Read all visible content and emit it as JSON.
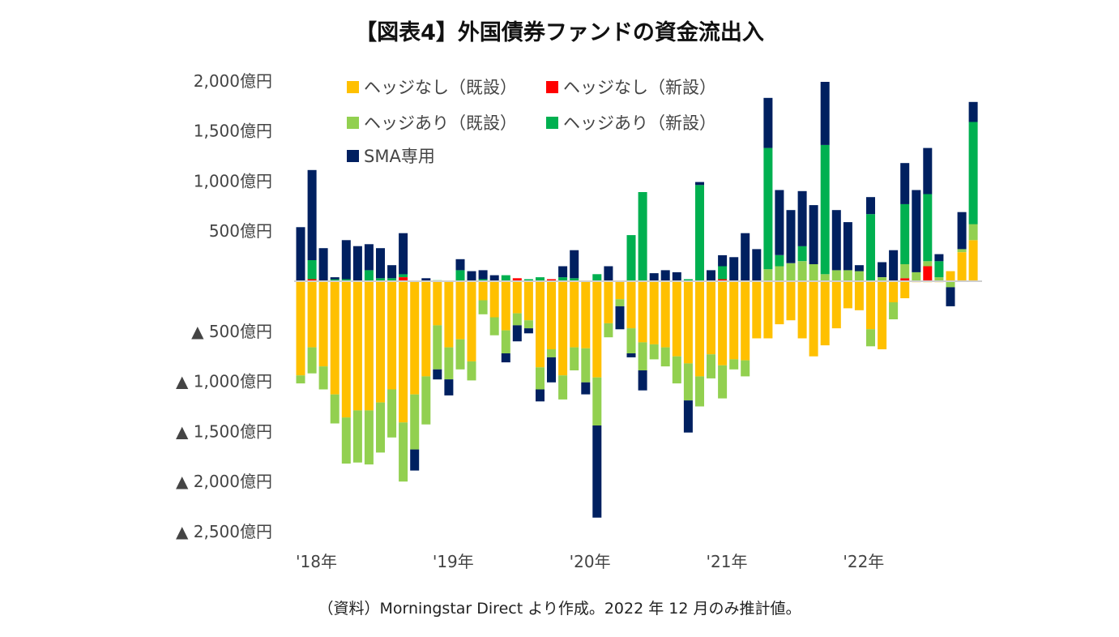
{
  "title": "【図表4】外国債券ファンドの資金流出入",
  "source": "（資料）Morningstar Direct より作成。2022 年 12 月のみ推計値。",
  "chart_data": {
    "type": "bar",
    "stacked": true,
    "title": "【図表4】外国債券ファンドの資金流出入",
    "xlabel": "",
    "ylabel": "",
    "unit": "億円",
    "ylim": [
      -2500,
      2000
    ],
    "y_ticks": [
      2000,
      1500,
      1000,
      500,
      -500,
      -1000,
      -1500,
      -2000,
      -2500
    ],
    "y_tick_labels": [
      "2,000億円",
      "1,500億円",
      "1,000億円",
      "500億円",
      "▲ 500億円",
      "▲ 1,000億円",
      "▲ 1,500億円",
      "▲ 2,000億円",
      "▲ 2,500億円"
    ],
    "x_tick_labels": [
      "'18年",
      "'19年",
      "'20年",
      "'21年",
      "'22年"
    ],
    "x_tick_index": [
      0,
      12,
      24,
      36,
      48
    ],
    "categories": [
      "2018-01",
      "2018-02",
      "2018-03",
      "2018-04",
      "2018-05",
      "2018-06",
      "2018-07",
      "2018-08",
      "2018-09",
      "2018-10",
      "2018-11",
      "2018-12",
      "2019-01",
      "2019-02",
      "2019-03",
      "2019-04",
      "2019-05",
      "2019-06",
      "2019-07",
      "2019-08",
      "2019-09",
      "2019-10",
      "2019-11",
      "2019-12",
      "2020-01",
      "2020-02",
      "2020-03",
      "2020-04",
      "2020-05",
      "2020-06",
      "2020-07",
      "2020-08",
      "2020-09",
      "2020-10",
      "2020-11",
      "2020-12",
      "2021-01",
      "2021-02",
      "2021-03",
      "2021-04",
      "2021-05",
      "2021-06",
      "2021-07",
      "2021-08",
      "2021-09",
      "2021-10",
      "2021-11",
      "2021-12",
      "2022-01",
      "2022-02",
      "2022-03",
      "2022-04",
      "2022-05",
      "2022-06",
      "2022-07",
      "2022-08",
      "2022-09",
      "2022-10",
      "2022-11",
      "2022-12"
    ],
    "grid": false,
    "legend_position": "top-left",
    "series": [
      {
        "name": "ヘッジなし（既設）",
        "color": "#FFC000",
        "values": [
          -940,
          -660,
          -850,
          -1130,
          -1360,
          -1290,
          -1290,
          -1210,
          -1080,
          -1410,
          -1130,
          -950,
          -440,
          -660,
          -580,
          -800,
          -190,
          -360,
          -490,
          -320,
          -390,
          -860,
          -680,
          -940,
          -660,
          -670,
          -960,
          -420,
          -180,
          -470,
          -610,
          -630,
          -660,
          -750,
          -820,
          -950,
          -730,
          -840,
          -780,
          -790,
          -570,
          -570,
          -430,
          -390,
          -570,
          -750,
          -640,
          -470,
          -270,
          -290,
          -480,
          -680,
          -210,
          -170,
          -10,
          -10,
          -10,
          100,
          290,
          410
        ]
      },
      {
        "name": "ヘッジなし（新設）",
        "color": "#FF0000",
        "values": [
          0,
          20,
          0,
          0,
          0,
          0,
          0,
          0,
          0,
          40,
          0,
          0,
          0,
          0,
          0,
          0,
          0,
          0,
          0,
          30,
          0,
          0,
          20,
          0,
          0,
          0,
          0,
          0,
          0,
          0,
          0,
          0,
          0,
          0,
          0,
          0,
          0,
          20,
          0,
          0,
          0,
          0,
          0,
          0,
          0,
          0,
          0,
          0,
          0,
          0,
          0,
          0,
          0,
          30,
          0,
          150,
          0,
          0,
          0,
          0
        ]
      },
      {
        "name": "ヘッジあり（既設）",
        "color": "#92D050",
        "values": [
          -80,
          -260,
          -230,
          -290,
          -460,
          -520,
          -540,
          -500,
          -480,
          -590,
          -550,
          -480,
          -440,
          -320,
          -300,
          -190,
          -140,
          -180,
          -230,
          -120,
          -80,
          -220,
          -80,
          -240,
          -230,
          -340,
          -480,
          -140,
          -70,
          -250,
          -280,
          -150,
          -190,
          -270,
          -370,
          -300,
          -240,
          -330,
          -100,
          -160,
          0,
          120,
          150,
          180,
          200,
          170,
          70,
          110,
          110,
          100,
          -170,
          40,
          -170,
          140,
          90,
          50,
          40,
          -60,
          30,
          160
        ]
      },
      {
        "name": "ヘッジあり（新設）",
        "color": "#00B050",
        "values": [
          0,
          190,
          0,
          20,
          20,
          0,
          110,
          30,
          30,
          30,
          0,
          0,
          10,
          0,
          110,
          0,
          20,
          0,
          60,
          0,
          20,
          40,
          0,
          40,
          30,
          0,
          70,
          0,
          0,
          460,
          890,
          0,
          0,
          0,
          20,
          960,
          0,
          130,
          0,
          0,
          0,
          1210,
          110,
          0,
          150,
          0,
          1290,
          0,
          0,
          0,
          670,
          0,
          0,
          600,
          0,
          670,
          160,
          0,
          0,
          1020
        ]
      },
      {
        "name": "SMA専用",
        "color": "#002060",
        "values": [
          540,
          900,
          330,
          20,
          390,
          350,
          260,
          300,
          130,
          410,
          -210,
          30,
          -100,
          -160,
          110,
          100,
          90,
          60,
          -90,
          -160,
          -50,
          -120,
          -250,
          110,
          280,
          -120,
          -920,
          150,
          -230,
          -40,
          -200,
          80,
          110,
          90,
          -320,
          30,
          110,
          110,
          240,
          480,
          320,
          500,
          650,
          530,
          550,
          590,
          630,
          600,
          480,
          60,
          170,
          150,
          310,
          410,
          820,
          460,
          70,
          -190,
          370,
          200
        ]
      }
    ],
    "legend_order": [
      0,
      1,
      2,
      3,
      4
    ]
  }
}
